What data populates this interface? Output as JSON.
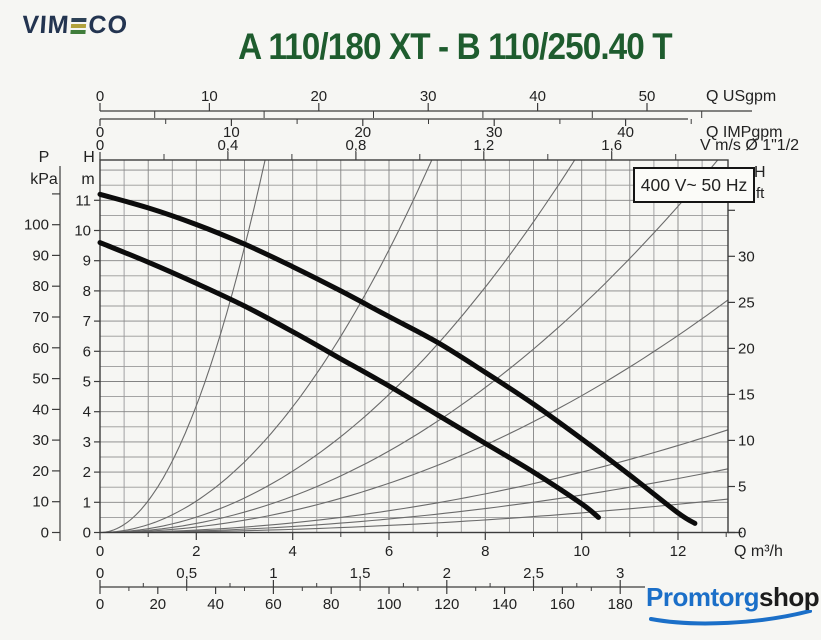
{
  "brand": {
    "prefix": "VIM",
    "suffix": "CO",
    "text_color": "#233450",
    "bar_colors": [
      "#2d4156",
      "#b2a23c",
      "#3f7d3a"
    ]
  },
  "title": {
    "text": "A 110/180 XT - B 110/250.40 T",
    "color": "#1e5c2e"
  },
  "watermark": {
    "part1": "Promtorg",
    "part2": "shop",
    "color1": "#1b6fc8",
    "color2": "#1c1c1c"
  },
  "chart_data": {
    "type": "line",
    "title": "A 110/180 XT - B 110/250.40 T",
    "badge": "400 V~ 50 Hz",
    "grid": true,
    "x_range_m3h": [
      0,
      13
    ],
    "y_range_m": [
      0,
      12.3
    ],
    "axes": {
      "x_top_usgpm": {
        "label": "Q USgpm",
        "per_m3h": 4.403,
        "ticks": [
          0,
          10,
          20,
          30,
          40,
          50
        ],
        "minor": [
          5,
          15,
          25,
          35,
          45,
          55
        ]
      },
      "x_top_impgpm": {
        "label": "Q IMPgpm",
        "per_m3h": 3.666,
        "ticks": [
          0,
          10,
          20,
          30,
          40
        ],
        "minor": [
          5,
          15,
          25,
          35,
          45
        ]
      },
      "x_top_v": {
        "label": "V m/s Ø 1\"1/2",
        "per_m3h": 0.1506,
        "tick_labels": [
          "0",
          "0,4",
          "0,8",
          "1,2",
          "1,6"
        ],
        "tick_values": [
          0,
          0.4,
          0.8,
          1.2,
          1.6
        ],
        "minor": [
          0.2,
          0.6,
          1.0,
          1.4,
          1.8
        ]
      },
      "x_bottom_main": {
        "label": "Q m³/h",
        "per_m3h": 1,
        "ticks": [
          0,
          2,
          4,
          6,
          8,
          10,
          12
        ],
        "minor": [
          1,
          3,
          5,
          7,
          9,
          11,
          13
        ]
      },
      "x_bottom_2": {
        "label": "",
        "per_m3h": 0.27778,
        "tick_labels": [
          "0",
          "0,5",
          "1",
          "1,5",
          "2",
          "2,5",
          "3"
        ],
        "tick_values": [
          0,
          0.5,
          1,
          1.5,
          2,
          2.5,
          3
        ],
        "minor": [
          0.25,
          0.75,
          1.25,
          1.75,
          2.25,
          2.75
        ]
      },
      "x_bottom_3": {
        "label": "",
        "per_m3h": 16.667,
        "ticks": [
          0,
          20,
          40,
          60,
          80,
          100,
          120,
          140,
          160,
          180
        ],
        "minor": [
          10,
          30,
          50,
          70,
          90,
          110,
          130,
          150,
          170
        ]
      },
      "y_left_m": {
        "header": [
          "H",
          "m"
        ],
        "per_m": 1,
        "ticks": [
          0,
          1,
          2,
          3,
          4,
          5,
          6,
          7,
          8,
          9,
          10,
          11
        ]
      },
      "y_left_kpa": {
        "header": [
          "P",
          "kPa"
        ],
        "per_m": 9.81,
        "ticks": [
          0,
          10,
          20,
          30,
          40,
          50,
          60,
          70,
          80,
          90,
          100
        ],
        "minor": [
          110
        ]
      },
      "y_right_ft": {
        "header": [
          "H",
          "ft"
        ],
        "per_m": 3.2808,
        "ticks": [
          0,
          5,
          10,
          15,
          20,
          25,
          30
        ],
        "minor": [
          35
        ]
      }
    },
    "series": [
      {
        "name": "pump-curve-high",
        "points": [
          [
            0,
            11.2
          ],
          [
            1,
            10.75
          ],
          [
            2,
            10.2
          ],
          [
            3,
            9.55
          ],
          [
            4,
            8.8
          ],
          [
            5,
            8.0
          ],
          [
            6,
            7.15
          ],
          [
            7,
            6.3
          ],
          [
            8,
            5.3
          ],
          [
            9,
            4.25
          ],
          [
            10,
            3.1
          ],
          [
            11,
            1.9
          ],
          [
            12,
            0.65
          ],
          [
            12.35,
            0.3
          ]
        ]
      },
      {
        "name": "pump-curve-low",
        "points": [
          [
            0,
            9.6
          ],
          [
            1,
            8.95
          ],
          [
            2,
            8.25
          ],
          [
            3,
            7.5
          ],
          [
            4,
            6.65
          ],
          [
            5,
            5.75
          ],
          [
            6,
            4.85
          ],
          [
            7,
            3.9
          ],
          [
            8,
            2.95
          ],
          [
            9,
            2.0
          ],
          [
            10,
            0.95
          ],
          [
            10.35,
            0.5
          ]
        ]
      }
    ],
    "system_curves_k": [
      1.05,
      0.26,
      0.127,
      0.075,
      0.0453,
      0.02,
      0.0124,
      0.0065
    ],
    "legend": "none"
  }
}
